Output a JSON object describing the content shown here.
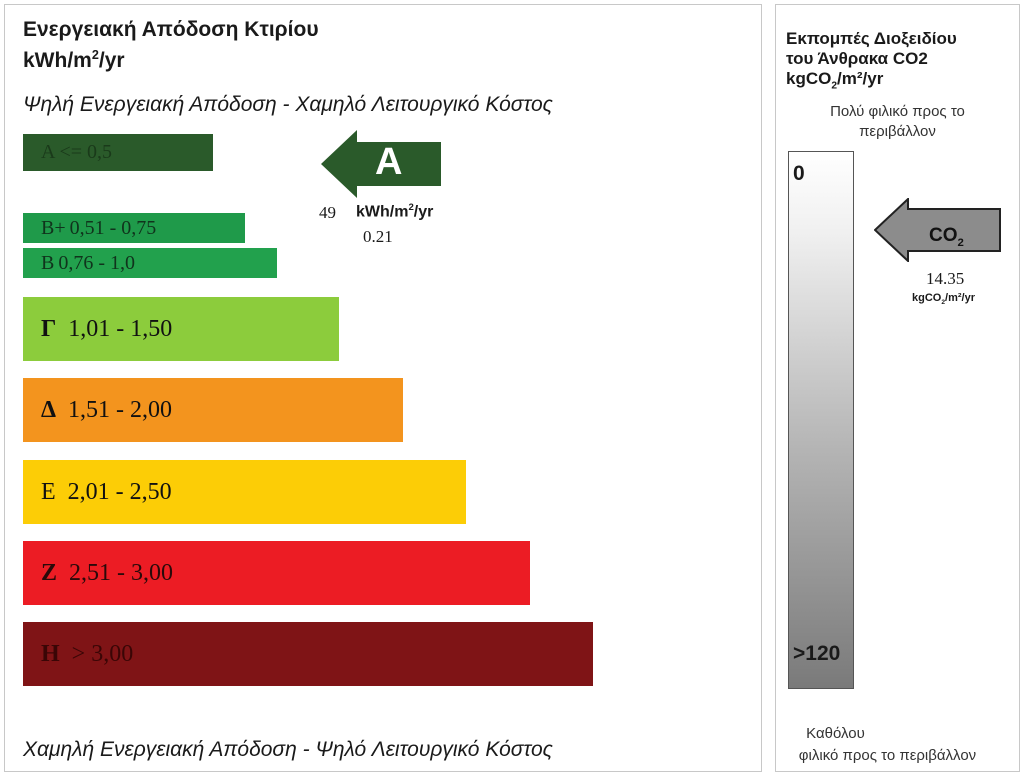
{
  "left": {
    "title_line1": "Ενεργειακή Απόδοση Κτιρίου",
    "title_unit_main": "kWh/m",
    "title_unit_sup": "2",
    "title_unit_tail": "/yr",
    "top_caption": "Ψηλή Ενεργειακή Απόδοση - Χαμηλό Λειτουργικό Κόστος",
    "bottom_caption": "Χαμηλή Ενεργειακή Απόδοση - Ψηλό Λειτουργικό Κόστος"
  },
  "chart_data": {
    "type": "bar",
    "categories": [
      "A",
      "B+",
      "B",
      "Γ",
      "Δ",
      "E",
      "Z",
      "H"
    ],
    "ranges": [
      "<= 0,5",
      "0,51 - 0,75",
      "0,76 - 1,0",
      "1,01 - 1,50",
      "1,51 - 2,00",
      "2,01 - 2,50",
      "2,51 - 3,00",
      "> 3,00"
    ],
    "colors": [
      "#2a5a2a",
      "#1f9a4a",
      "#22a14d",
      "#8ccc3c",
      "#f3941e",
      "#fccd06",
      "#ec1c24",
      "#7f1416"
    ],
    "rating": {
      "letter": "A",
      "value": "49",
      "unit_main": "kWh/m",
      "unit_sup": "2",
      "unit_tail": "/yr",
      "ratio": "0.21",
      "arrow_color": "#2a5a2a"
    }
  },
  "right": {
    "title_line1": "Εκπομπές Διοξειδίου",
    "title_line2": "του Άνθρακα  CO2",
    "title_unit_main": "kgCO",
    "title_unit_sub": "2",
    "title_unit_tail": "/m²/yr",
    "top_note_line1": "Πολύ φιλικό προς το",
    "top_note_line2": "περιβάλλον",
    "gauge_top": "0",
    "gauge_bottom": ">120",
    "arrow_label_main": "CO",
    "arrow_label_sub": "2",
    "arrow_color": "#8c8c8c",
    "value": "14.35",
    "unit_main": "kgCO",
    "unit_sub": "2",
    "unit_tail": "/m²/yr",
    "bottom_note_line1": "Καθόλου",
    "bottom_note_line2": "φιλικό προς το περιβάλλον"
  }
}
